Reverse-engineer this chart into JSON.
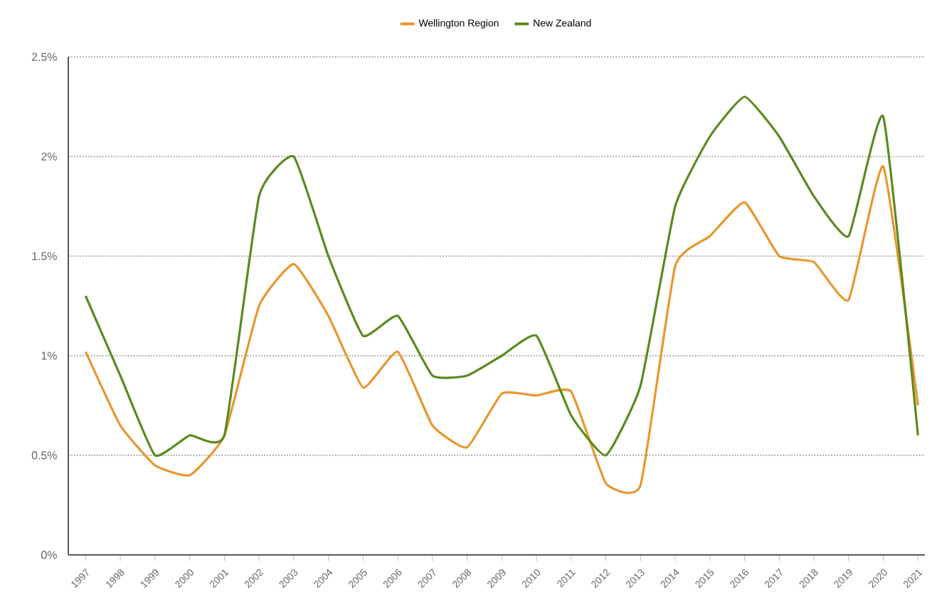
{
  "chart_data": {
    "type": "line",
    "categories": [
      "1997",
      "1998",
      "1999",
      "2000",
      "2001",
      "2002",
      "2003",
      "2004",
      "2005",
      "2006",
      "2007",
      "2008",
      "2009",
      "2010",
      "2011",
      "2012",
      "2013",
      "2014",
      "2015",
      "2016",
      "2017",
      "2018",
      "2019",
      "2020",
      "2021"
    ],
    "series": [
      {
        "name": "Wellington Region",
        "color": "#e8962e",
        "values": [
          1.02,
          0.65,
          0.45,
          0.4,
          0.6,
          1.25,
          1.46,
          1.2,
          0.84,
          1.02,
          0.65,
          0.54,
          0.81,
          0.8,
          0.82,
          0.36,
          0.35,
          1.45,
          1.6,
          1.77,
          1.5,
          1.47,
          1.28,
          1.95,
          0.75
        ]
      },
      {
        "name": "New Zealand",
        "color": "#5a8a1e",
        "values": [
          1.3,
          0.9,
          0.5,
          0.6,
          0.6,
          1.8,
          2.0,
          1.5,
          1.1,
          1.2,
          0.9,
          0.9,
          1.0,
          1.1,
          0.7,
          0.5,
          0.85,
          1.75,
          2.1,
          2.3,
          2.1,
          1.8,
          1.6,
          2.2,
          0.6
        ]
      }
    ],
    "ylim": [
      0,
      2.5
    ],
    "yticks": [
      {
        "value": 0,
        "label": "0%"
      },
      {
        "value": 0.5,
        "label": "0.5%"
      },
      {
        "value": 1,
        "label": "1%"
      },
      {
        "value": 1.5,
        "label": "1.5%"
      },
      {
        "value": 2,
        "label": "2%"
      },
      {
        "value": 2.5,
        "label": "2.5%"
      }
    ],
    "grid": "y",
    "legend": "top",
    "marker": "none",
    "line_style": "solid"
  }
}
